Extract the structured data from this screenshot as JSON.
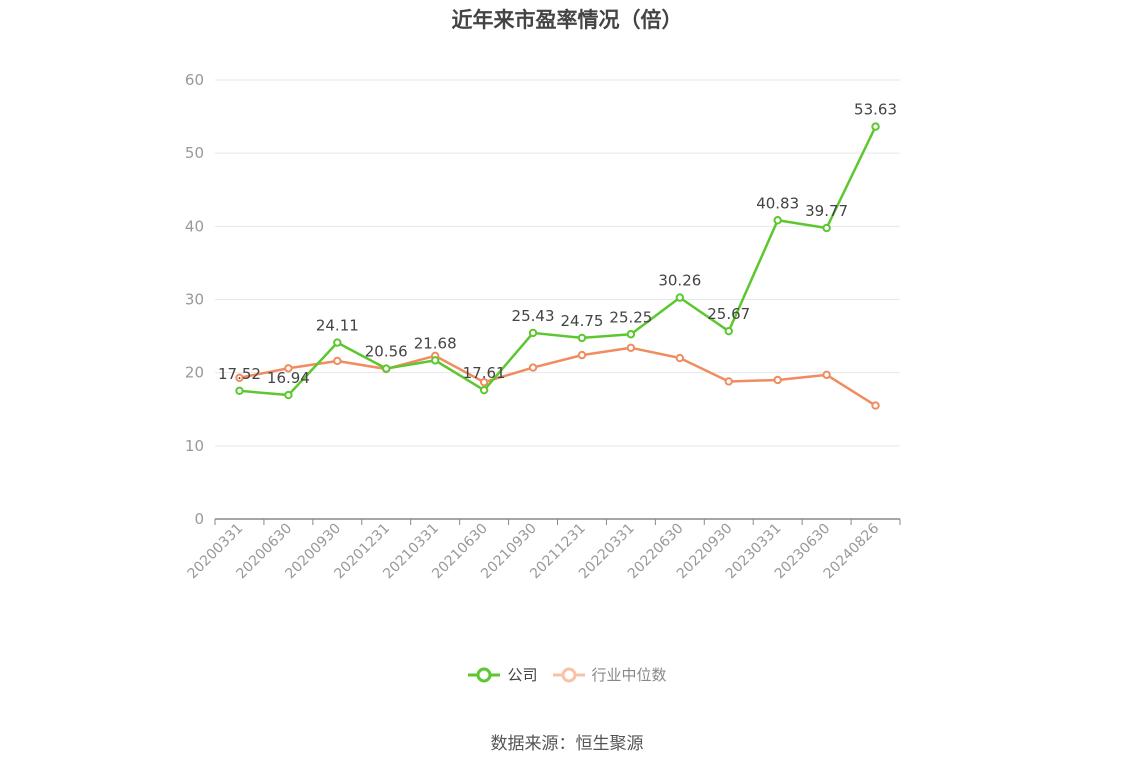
{
  "title": "近年来市盈率情况（倍）",
  "source_note": "数据来源：恒生聚源",
  "colors": {
    "company": "#5cc72f",
    "industry": "#f08c5f",
    "grid": "#e6e6ee",
    "axis": "#888888",
    "tick_text": "#999999",
    "label_text": "#444444"
  },
  "chart_data": {
    "type": "line",
    "title": "近年来市盈率情况（倍）",
    "xlabel": "",
    "ylabel": "",
    "ylim": [
      0,
      60
    ],
    "yticks": [
      0,
      10,
      20,
      30,
      40,
      50,
      60
    ],
    "grid": true,
    "legend_position": "bottom",
    "categories": [
      "20200331",
      "20200630",
      "20200930",
      "20201231",
      "20210331",
      "20210630",
      "20210930",
      "20211231",
      "20220331",
      "20220630",
      "20220930",
      "20230331",
      "20230630",
      "20240826"
    ],
    "series": [
      {
        "name": "公司",
        "values": [
          17.52,
          16.94,
          24.11,
          20.56,
          21.68,
          17.61,
          25.43,
          24.75,
          25.25,
          30.26,
          25.67,
          40.83,
          39.77,
          53.63
        ],
        "show_labels": true
      },
      {
        "name": "行业中位数",
        "values": [
          19.3,
          20.6,
          21.6,
          20.5,
          22.3,
          18.7,
          20.7,
          22.4,
          23.4,
          22.0,
          18.8,
          19.0,
          19.7,
          15.5
        ],
        "show_labels": false
      }
    ]
  }
}
